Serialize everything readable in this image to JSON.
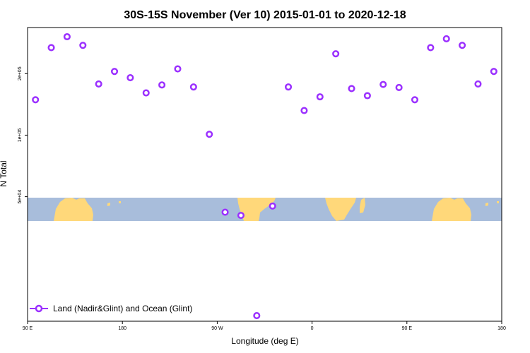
{
  "chart_data": {
    "type": "scatter",
    "title": "30S-15S November (Ver 10)   2015-01-01 to 2020-12-18",
    "xlabel": "Longitude (deg E)",
    "ylabel": "N Total",
    "x_tick_labels": [
      "90 E",
      "180",
      "90 W",
      "0",
      "90 E",
      "180"
    ],
    "x_ticks": [
      90,
      180,
      270,
      360,
      450,
      540
    ],
    "xlim": [
      90,
      540
    ],
    "y_tick_labels": [
      "5e+04",
      "1e+05",
      "2e+05"
    ],
    "y_ticks": [
      50000,
      100000,
      200000
    ],
    "ylim": [
      12300,
      336000
    ],
    "y_scale": "log",
    "grid": false,
    "legend_position": "bottom-left",
    "map_band": {
      "lon_range": [
        90,
        540
      ],
      "lat_range": [
        -30,
        -15
      ],
      "ocean_color": "#a8bddb",
      "land_color": "#ffd87a"
    },
    "series": [
      {
        "name": "Land (Nadir&Glint) and Ocean (Glint)",
        "color": "#9b30ff",
        "x": [
          97.5,
          112.5,
          127.5,
          142.5,
          157.5,
          172.5,
          187.5,
          202.5,
          217.5,
          232.5,
          247.5,
          262.5,
          277.5,
          292.5,
          307.5,
          322.5,
          337.5,
          352.5,
          367.5,
          382.5,
          397.5,
          412.5,
          427.5,
          442.5,
          457.5,
          472.5,
          487.5,
          502.5,
          517.5,
          532.5
        ],
        "y": [
          149000,
          268000,
          303000,
          275000,
          178000,
          205000,
          191000,
          161000,
          176000,
          211000,
          172000,
          101000,
          42000,
          40500,
          13100,
          45000,
          172000,
          132000,
          154000,
          250000,
          169000,
          156000,
          177000,
          171000,
          149000,
          268000,
          296000,
          275000,
          178000,
          205000
        ]
      }
    ]
  }
}
